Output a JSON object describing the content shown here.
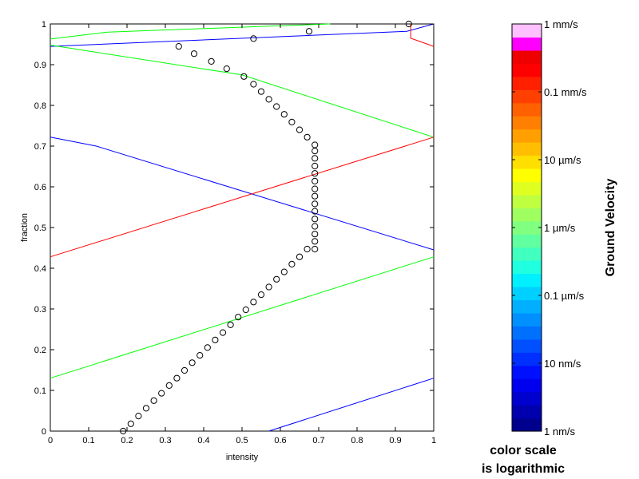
{
  "chart_data": {
    "type": "line",
    "xlabel": "intensity",
    "ylabel": "fraction",
    "xlim": [
      0,
      1
    ],
    "ylim": [
      0,
      1
    ],
    "xticks": [
      "0",
      "0.1",
      "0.2",
      "0.3",
      "0.4",
      "0.5",
      "0.6",
      "0.7",
      "0.8",
      "0.9",
      "1"
    ],
    "yticks": [
      "0",
      "0.1",
      "0.2",
      "0.3",
      "0.4",
      "0.5",
      "0.6",
      "0.7",
      "0.8",
      "0.9",
      "1"
    ],
    "grid": false,
    "lines": [
      {
        "color": "#00ff00",
        "points": [
          [
            0,
            0.963
          ],
          [
            0.15,
            0.98
          ],
          [
            0.73,
            1.0
          ]
        ]
      },
      {
        "color": "#0000ff",
        "points": [
          [
            0,
            0.945
          ],
          [
            0.93,
            0.982
          ],
          [
            1.0,
            1.0
          ]
        ]
      },
      {
        "color": "#ff0000",
        "points": [
          [
            0.94,
            1.0
          ],
          [
            0.94,
            0.965
          ],
          [
            1.0,
            0.945
          ]
        ]
      },
      {
        "color": "#00ff00",
        "points": [
          [
            0,
            0.948
          ],
          [
            0.5,
            0.875
          ],
          [
            1.0,
            0.722
          ]
        ]
      },
      {
        "color": "#0000ff",
        "points": [
          [
            0,
            0.722
          ],
          [
            0.12,
            0.7
          ],
          [
            1.0,
            0.445
          ]
        ]
      },
      {
        "color": "#ff0000",
        "points": [
          [
            0,
            0.428
          ],
          [
            1.0,
            0.722
          ]
        ]
      },
      {
        "color": "#00ff00",
        "points": [
          [
            0,
            0.13
          ],
          [
            1.0,
            0.428
          ]
        ]
      },
      {
        "color": "#0000ff",
        "points": [
          [
            0.57,
            0
          ],
          [
            1.0,
            0.13
          ]
        ]
      }
    ],
    "markers": {
      "style": "open-circle",
      "points": [
        [
          0.19,
          0.0
        ],
        [
          0.21,
          0.018
        ],
        [
          0.23,
          0.037
        ],
        [
          0.25,
          0.056
        ],
        [
          0.27,
          0.075
        ],
        [
          0.29,
          0.093
        ],
        [
          0.31,
          0.112
        ],
        [
          0.33,
          0.13
        ],
        [
          0.35,
          0.149
        ],
        [
          0.37,
          0.168
        ],
        [
          0.39,
          0.186
        ],
        [
          0.41,
          0.205
        ],
        [
          0.43,
          0.224
        ],
        [
          0.45,
          0.242
        ],
        [
          0.47,
          0.261
        ],
        [
          0.49,
          0.28
        ],
        [
          0.51,
          0.298
        ],
        [
          0.53,
          0.317
        ],
        [
          0.55,
          0.335
        ],
        [
          0.57,
          0.354
        ],
        [
          0.59,
          0.373
        ],
        [
          0.61,
          0.391
        ],
        [
          0.63,
          0.41
        ],
        [
          0.65,
          0.428
        ],
        [
          0.67,
          0.447
        ],
        [
          0.69,
          0.447
        ],
        [
          0.69,
          0.466
        ],
        [
          0.69,
          0.484
        ],
        [
          0.69,
          0.503
        ],
        [
          0.69,
          0.521
        ],
        [
          0.69,
          0.54
        ],
        [
          0.69,
          0.558
        ],
        [
          0.69,
          0.577
        ],
        [
          0.69,
          0.595
        ],
        [
          0.69,
          0.614
        ],
        [
          0.69,
          0.633
        ],
        [
          0.69,
          0.651
        ],
        [
          0.69,
          0.67
        ],
        [
          0.69,
          0.688
        ],
        [
          0.69,
          0.703
        ],
        [
          0.67,
          0.722
        ],
        [
          0.65,
          0.74
        ],
        [
          0.63,
          0.759
        ],
        [
          0.61,
          0.778
        ],
        [
          0.59,
          0.797
        ],
        [
          0.57,
          0.815
        ],
        [
          0.55,
          0.834
        ],
        [
          0.53,
          0.852
        ],
        [
          0.505,
          0.871
        ],
        [
          0.46,
          0.89
        ],
        [
          0.42,
          0.908
        ],
        [
          0.375,
          0.927
        ],
        [
          0.335,
          0.945
        ],
        [
          0.53,
          0.964
        ],
        [
          0.675,
          0.982
        ],
        [
          0.935,
          1.0
        ]
      ]
    }
  },
  "colorbar": {
    "title": "Ground Velocity",
    "scale": "logarithmic",
    "colors": [
      "#00008f",
      "#0000af",
      "#0000cf",
      "#0000ef",
      "#0010ff",
      "#0030ff",
      "#0050ff",
      "#0070ff",
      "#0090ff",
      "#00b0ff",
      "#00d0ff",
      "#00f0ff",
      "#20ffdf",
      "#40ffbf",
      "#60ff9f",
      "#80ff80",
      "#9fff60",
      "#bfff40",
      "#dfff20",
      "#ffff00",
      "#ffdf00",
      "#ffbf00",
      "#ff9f00",
      "#ff8000",
      "#ff6000",
      "#ff4000",
      "#ff2000",
      "#ff0000",
      "#ef0000",
      "#ff00ff",
      "#ffc0ff"
    ],
    "labels": [
      "1 nm/s",
      "10 nm/s",
      "0.1 µm/s",
      "1 µm/s",
      "10 µm/s",
      "0.1 mm/s",
      "1 mm/s"
    ]
  },
  "note": {
    "line1": "color scale",
    "line2": "is logarithmic"
  }
}
